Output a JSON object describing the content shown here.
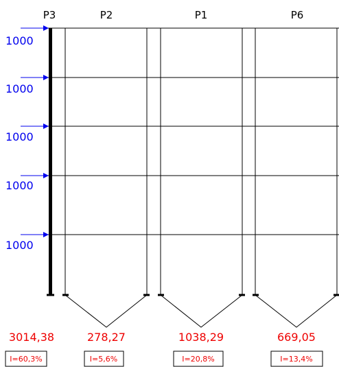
{
  "columns": [
    {
      "label": "P3",
      "result": "3014,38",
      "ratio": "I=60,3%"
    },
    {
      "label": "P2",
      "result": "278,27",
      "ratio": "I=5,6%"
    },
    {
      "label": "P1",
      "result": "1038,29",
      "ratio": "I=20,8%"
    },
    {
      "label": "P6",
      "result": "669,05",
      "ratio": "I=13,4%"
    }
  ],
  "loads": [
    "1000",
    "1000",
    "1000",
    "1000",
    "1000"
  ]
}
